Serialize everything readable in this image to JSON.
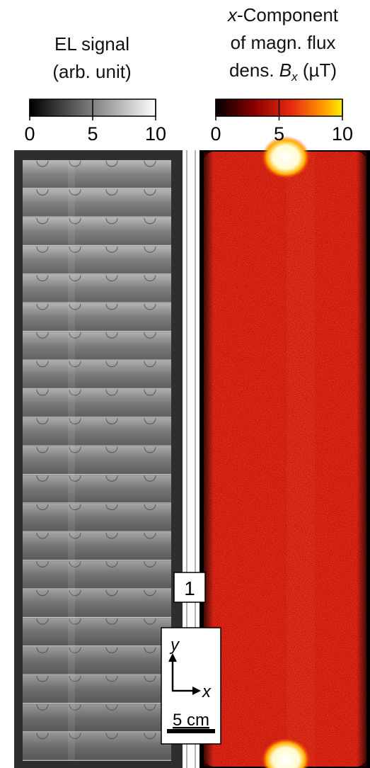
{
  "left_panel": {
    "title_lines": [
      "EL signal",
      "(arb. unit)"
    ],
    "colorbar": {
      "lim": [
        0,
        10
      ],
      "ticks": [
        0,
        5,
        10
      ]
    }
  },
  "right_panel": {
    "title": {
      "line1": [
        "x",
        "-Component"
      ],
      "line2": "of magn. flux",
      "line3": [
        "dens.",
        "B",
        "x",
        "(µT)"
      ]
    },
    "colorbar": {
      "lim": [
        0,
        10
      ],
      "ticks": [
        0,
        5,
        10
      ]
    }
  },
  "string_label": "1",
  "axes": {
    "y": "y",
    "x": "x"
  },
  "scale_bar": "5 cm"
}
